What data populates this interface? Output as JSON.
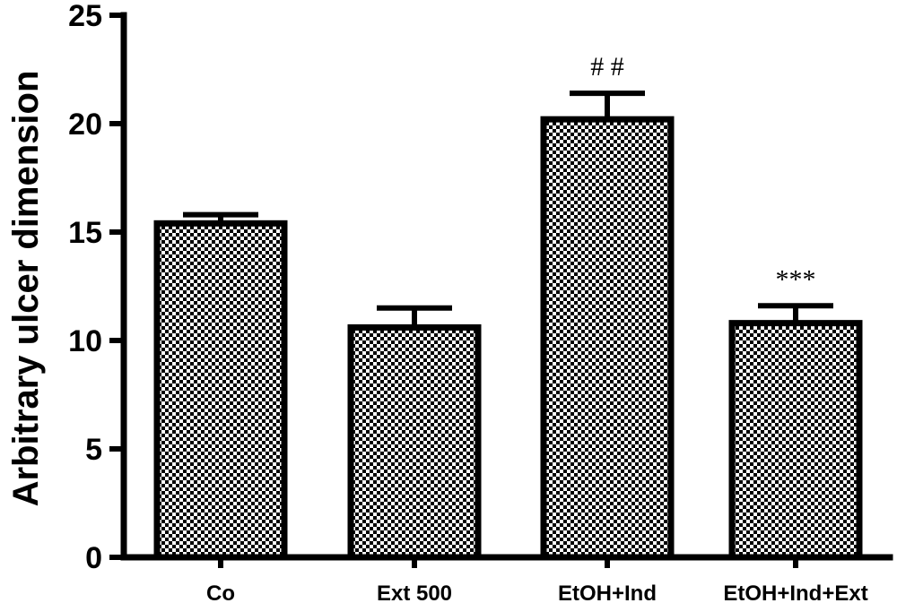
{
  "chart_data": {
    "type": "bar",
    "title": "",
    "xlabel": "",
    "ylabel": "Arbitrary ulcer dimension",
    "ylim": [
      0,
      25
    ],
    "yticks": [
      0,
      5,
      10,
      15,
      20,
      25
    ],
    "categories": [
      "Co",
      "Ext 500",
      "EtOH+Ind",
      "EtOH+Ind+Ext"
    ],
    "values": [
      15.4,
      10.6,
      20.2,
      10.8
    ],
    "errors": [
      0.4,
      0.9,
      1.2,
      0.8
    ],
    "annotations": [
      "",
      "",
      "# #",
      "***"
    ],
    "bar_fill": "checkerboard",
    "colors": {
      "stroke": "#000000",
      "pattern_dark": "#000000",
      "pattern_light": "#ffffff"
    },
    "grid": false,
    "legend": "none"
  }
}
